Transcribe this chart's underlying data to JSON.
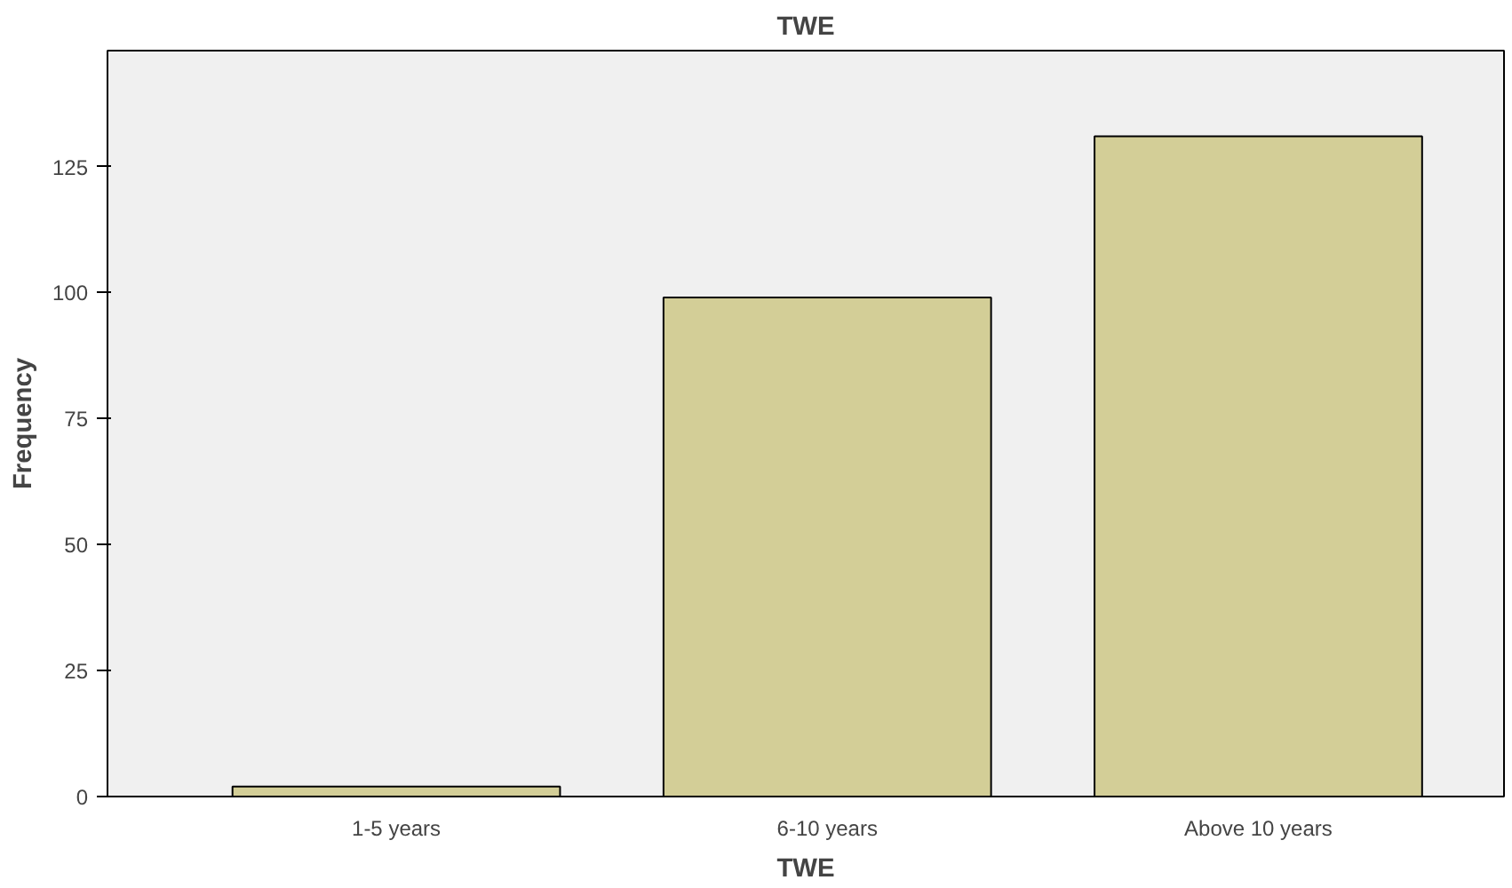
{
  "chart_data": {
    "type": "bar",
    "title": "TWE",
    "xlabel": "TWE",
    "ylabel": "Frequency",
    "categories": [
      "1-5 years",
      "6-10 years",
      "Above 10 years"
    ],
    "values": [
      2,
      99,
      131
    ],
    "color": "#d3ce97",
    "ylim": [
      0,
      148
    ],
    "yticks": [
      0,
      25,
      50,
      75,
      100,
      125
    ],
    "grid": false
  }
}
